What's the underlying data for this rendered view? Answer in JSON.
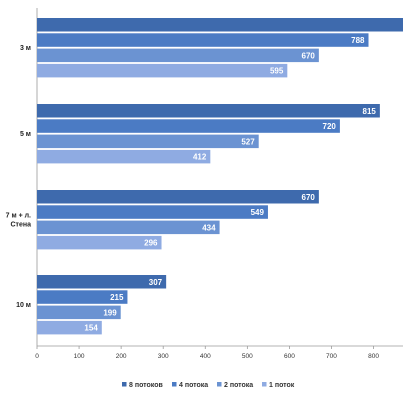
{
  "chart_data": {
    "type": "bar",
    "orientation": "horizontal",
    "categories": [
      "3 м",
      "5 м",
      "7 м + л. Стена",
      "10 м"
    ],
    "category_lines": [
      [
        "3 м"
      ],
      [
        "5 м"
      ],
      [
        "7 м + л.",
        "Стена"
      ],
      [
        "10 м"
      ]
    ],
    "series": [
      {
        "name": "8 потоков",
        "color": "#3e6aad",
        "values": [
          870,
          815,
          670,
          307
        ]
      },
      {
        "name": "4 потока",
        "color": "#4b7bc4",
        "values": [
          788,
          720,
          549,
          215
        ]
      },
      {
        "name": "2 потока",
        "color": "#6b93d2",
        "values": [
          670,
          527,
          434,
          199
        ]
      },
      {
        "name": "1 поток",
        "color": "#8fabe2",
        "values": [
          595,
          412,
          296,
          154
        ]
      }
    ],
    "value_labels_shown": [
      [
        false,
        true,
        true,
        true
      ],
      [
        true,
        true,
        true,
        true
      ],
      [
        true,
        true,
        true,
        true
      ],
      [
        true,
        true,
        true,
        true
      ]
    ],
    "xticks": [
      0,
      100,
      200,
      300,
      400,
      500,
      600,
      700,
      800
    ],
    "xlim": [
      0,
      870
    ],
    "grid": false,
    "legend_position": "bottom",
    "title": "",
    "xlabel": "",
    "ylabel": ""
  }
}
